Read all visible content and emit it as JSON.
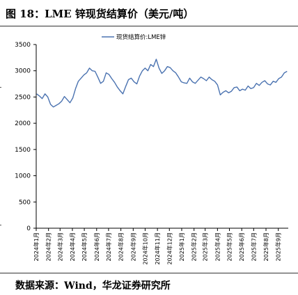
{
  "figure": {
    "title": "图 18：LME 锌现货结算价（美元/吨）",
    "source": "数据来源：Wind，华龙证券研究所"
  },
  "colors": {
    "line": "#4a72b0",
    "axis": "#000000"
  },
  "chart_data": {
    "type": "line",
    "title": "",
    "xlabel": "",
    "ylabel": "",
    "ylim": [
      0,
      3500
    ],
    "yticks": [
      0,
      500,
      1000,
      1500,
      2000,
      2500,
      3000,
      3500
    ],
    "xticks": [
      "2024年1月",
      "2024年2月",
      "2024年3月",
      "2024年4月",
      "2024年5月",
      "2024年6月",
      "2024年7月",
      "2024年8月",
      "2024年9月",
      "2024年10月",
      "2024年11月",
      "2024年12月",
      "2025年1月",
      "2025年2月",
      "2025年3月",
      "2025年4月",
      "2025年5月",
      "2025年6月",
      "2025年7月",
      "2025年8月",
      "2025年9月"
    ],
    "legend": "top-center",
    "series": [
      {
        "name": "现货结算价:LME锌",
        "x": [
          "2024-01-02",
          "2024-01-09",
          "2024-01-16",
          "2024-01-23",
          "2024-01-30",
          "2024-02-06",
          "2024-02-13",
          "2024-02-20",
          "2024-02-27",
          "2024-03-05",
          "2024-03-12",
          "2024-03-19",
          "2024-03-26",
          "2024-04-02",
          "2024-04-09",
          "2024-04-16",
          "2024-04-23",
          "2024-04-30",
          "2024-05-07",
          "2024-05-14",
          "2024-05-21",
          "2024-05-28",
          "2024-06-04",
          "2024-06-11",
          "2024-06-18",
          "2024-06-25",
          "2024-07-02",
          "2024-07-09",
          "2024-07-16",
          "2024-07-23",
          "2024-07-30",
          "2024-08-06",
          "2024-08-13",
          "2024-08-20",
          "2024-08-27",
          "2024-09-03",
          "2024-09-10",
          "2024-09-17",
          "2024-09-24",
          "2024-10-01",
          "2024-10-08",
          "2024-10-15",
          "2024-10-22",
          "2024-10-29",
          "2024-11-05",
          "2024-11-12",
          "2024-11-19",
          "2024-11-26",
          "2024-12-03",
          "2024-12-10",
          "2024-12-17",
          "2024-12-24",
          "2024-12-31",
          "2025-01-07",
          "2025-01-14",
          "2025-01-21",
          "2025-01-28",
          "2025-02-04",
          "2025-02-11",
          "2025-02-18",
          "2025-02-25",
          "2025-03-04",
          "2025-03-11",
          "2025-03-18",
          "2025-03-25",
          "2025-04-01",
          "2025-04-08",
          "2025-04-15",
          "2025-04-22",
          "2025-04-29",
          "2025-05-06",
          "2025-05-13",
          "2025-05-20",
          "2025-05-27",
          "2025-06-03",
          "2025-06-10",
          "2025-06-17",
          "2025-06-24",
          "2025-07-01",
          "2025-07-08",
          "2025-07-15",
          "2025-07-22",
          "2025-07-29",
          "2025-08-05",
          "2025-08-12",
          "2025-08-19",
          "2025-08-26",
          "2025-09-02",
          "2025-09-09",
          "2025-09-16",
          "2025-09-23"
        ],
        "values": [
          2560,
          2520,
          2470,
          2560,
          2500,
          2360,
          2310,
          2340,
          2370,
          2420,
          2510,
          2450,
          2390,
          2480,
          2660,
          2800,
          2860,
          2920,
          2960,
          3050,
          3000,
          2990,
          2880,
          2760,
          2800,
          2960,
          2930,
          2850,
          2780,
          2690,
          2620,
          2560,
          2700,
          2830,
          2860,
          2790,
          2750,
          2900,
          3000,
          3050,
          3000,
          3120,
          3080,
          3220,
          3050,
          2950,
          3000,
          3080,
          3060,
          3000,
          2960,
          2880,
          2790,
          2770,
          2760,
          2860,
          2790,
          2760,
          2820,
          2880,
          2850,
          2810,
          2880,
          2830,
          2800,
          2730,
          2540,
          2590,
          2620,
          2580,
          2610,
          2680,
          2690,
          2620,
          2650,
          2630,
          2710,
          2660,
          2680,
          2760,
          2720,
          2780,
          2810,
          2750,
          2730,
          2800,
          2780,
          2850,
          2880,
          2960,
          2990
        ]
      }
    ]
  }
}
